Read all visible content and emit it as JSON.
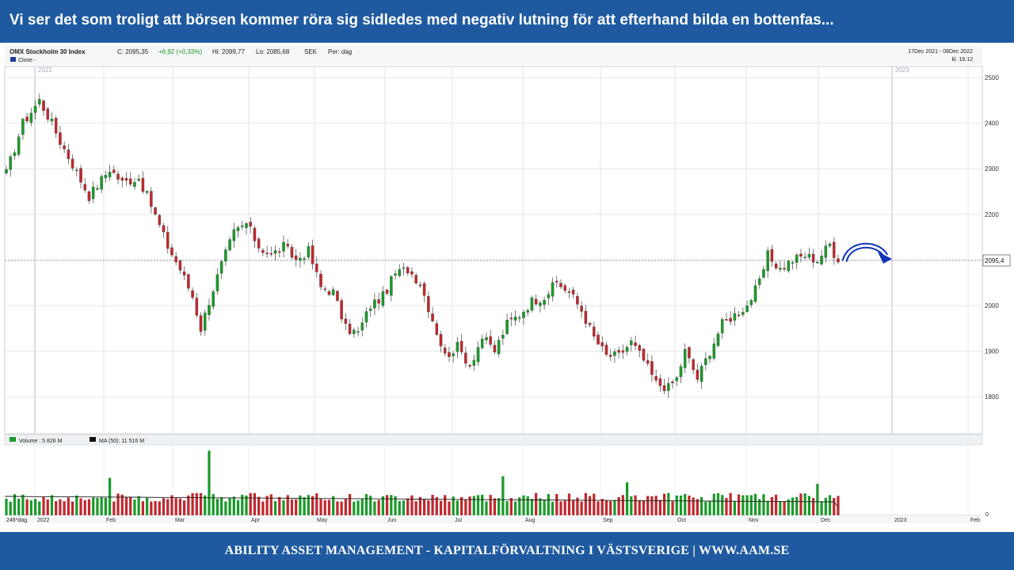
{
  "slide": {
    "headline": "Vi ser det som troligt att börsen kommer röra sig sidledes med negativ lutning för att efterhand bilda en bottenfas...",
    "footer": "ABILITY ASSET MANAGEMENT -  KAPITALFÖRVALTNING I VÄSTSVERIGE   |   WWW.AAM.SE",
    "colors": {
      "banner": "#1f5aa0",
      "up": "#1a9a2a",
      "down": "#c0282e",
      "arrow": "#1034b8"
    }
  },
  "chart_data": {
    "type": "candlestick",
    "header": {
      "instrument": "OMX Stockholm 30 Index",
      "close_label": "C: 2095,35",
      "change_label": "+6,92 (+0,33%)",
      "high_label": "Hi: 2099,77",
      "low_label": "Lo: 2085,68",
      "currency": "SEK",
      "period": "Per: dag",
      "date_range": "17Dec 2021 - 08Dec 2022",
      "time": "kl. 16:12",
      "legend": "Close - "
    },
    "y_axis": {
      "ticks": [
        2500,
        2400,
        2300,
        2200,
        2100,
        2000,
        1900,
        1800
      ],
      "ylim": [
        1720,
        2530
      ]
    },
    "last_value_label": "2095,4",
    "last_value": 2095.35,
    "year_labels": [
      "2022",
      "2023"
    ],
    "volume_panel": {
      "volume_label": "Volume : 5 826 M",
      "ma_label": "MA (50): 11 516 M",
      "zero_label": "0",
      "bars_label": "246*dag"
    },
    "months": [
      "2022",
      "Feb",
      "Mar",
      "Apr",
      "May",
      "Jun",
      "Jul",
      "Aug",
      "Sep",
      "Oct",
      "Nov",
      "Dec",
      "2023",
      "Feb"
    ],
    "close_path": [
      [
        0,
        2290
      ],
      [
        4,
        2400
      ],
      [
        8,
        2450
      ],
      [
        11,
        2400
      ],
      [
        13,
        2360
      ],
      [
        16,
        2310
      ],
      [
        20,
        2240
      ],
      [
        25,
        2300
      ],
      [
        28,
        2270
      ],
      [
        32,
        2280
      ],
      [
        35,
        2220
      ],
      [
        39,
        2130
      ],
      [
        42,
        2080
      ],
      [
        45,
        2020
      ],
      [
        47,
        1950
      ],
      [
        49,
        2010
      ],
      [
        52,
        2090
      ],
      [
        55,
        2160
      ],
      [
        58,
        2180
      ],
      [
        61,
        2130
      ],
      [
        64,
        2110
      ],
      [
        67,
        2130
      ],
      [
        70,
        2100
      ],
      [
        73,
        2120
      ],
      [
        76,
        2040
      ],
      [
        79,
        2030
      ],
      [
        82,
        1950
      ],
      [
        85,
        1940
      ],
      [
        88,
        2000
      ],
      [
        91,
        2020
      ],
      [
        94,
        2070
      ],
      [
        97,
        2080
      ],
      [
        100,
        2050
      ],
      [
        103,
        1970
      ],
      [
        106,
        1890
      ],
      [
        109,
        1910
      ],
      [
        112,
        1870
      ],
      [
        115,
        1930
      ],
      [
        118,
        1900
      ],
      [
        121,
        1960
      ],
      [
        124,
        1980
      ],
      [
        127,
        2010
      ],
      [
        130,
        2020
      ],
      [
        133,
        2050
      ],
      [
        136,
        2030
      ],
      [
        139,
        1990
      ],
      [
        142,
        1930
      ],
      [
        145,
        1890
      ],
      [
        148,
        1890
      ],
      [
        151,
        1920
      ],
      [
        154,
        1880
      ],
      [
        157,
        1830
      ],
      [
        160,
        1820
      ],
      [
        162,
        1840
      ],
      [
        164,
        1900
      ],
      [
        167,
        1840
      ],
      [
        170,
        1900
      ],
      [
        173,
        1960
      ],
      [
        176,
        1980
      ],
      [
        179,
        2000
      ],
      [
        182,
        2050
      ],
      [
        184,
        2110
      ],
      [
        187,
        2080
      ],
      [
        190,
        2100
      ],
      [
        193,
        2110
      ],
      [
        196,
        2100
      ],
      [
        199,
        2135
      ],
      [
        201,
        2095
      ]
    ]
  }
}
